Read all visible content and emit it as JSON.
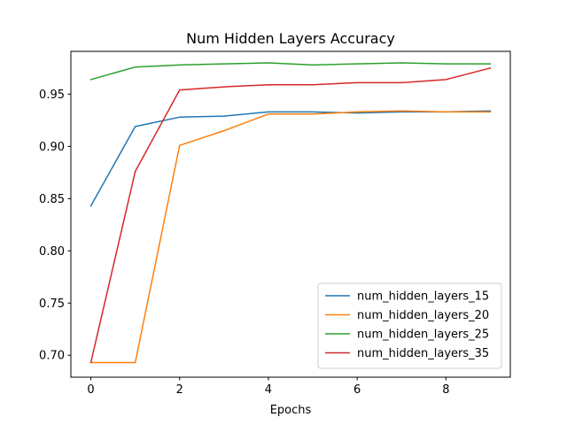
{
  "chart_data": {
    "type": "line",
    "title": "Num Hidden Layers Accuracy",
    "xlabel": "Epochs",
    "ylabel": "",
    "x": [
      0,
      1,
      2,
      3,
      4,
      5,
      6,
      7,
      8,
      9
    ],
    "xlim": [
      -0.45,
      9.45
    ],
    "ylim": [
      0.679,
      0.991
    ],
    "x_ticks": [
      0,
      2,
      4,
      6,
      8
    ],
    "y_ticks": [
      0.7,
      0.75,
      0.8,
      0.85,
      0.9,
      0.95
    ],
    "y_tick_labels": [
      "0.70",
      "0.75",
      "0.80",
      "0.85",
      "0.90",
      "0.95"
    ],
    "grid": false,
    "legend_position": "lower-right",
    "series": [
      {
        "name": "num_hidden_layers_15",
        "color": "#1f77b4",
        "values": [
          0.843,
          0.919,
          0.928,
          0.929,
          0.933,
          0.933,
          0.932,
          0.933,
          0.933,
          0.934
        ]
      },
      {
        "name": "num_hidden_layers_20",
        "color": "#ff7f0e",
        "values": [
          0.693,
          0.693,
          0.901,
          0.915,
          0.931,
          0.931,
          0.933,
          0.934,
          0.933,
          0.933
        ]
      },
      {
        "name": "num_hidden_layers_25",
        "color": "#2ca02c",
        "values": [
          0.964,
          0.976,
          0.978,
          0.979,
          0.98,
          0.978,
          0.979,
          0.98,
          0.979,
          0.979
        ]
      },
      {
        "name": "num_hidden_layers_35",
        "color": "#d62728",
        "values": [
          0.693,
          0.876,
          0.954,
          0.957,
          0.959,
          0.959,
          0.961,
          0.961,
          0.964,
          0.975
        ]
      }
    ]
  }
}
